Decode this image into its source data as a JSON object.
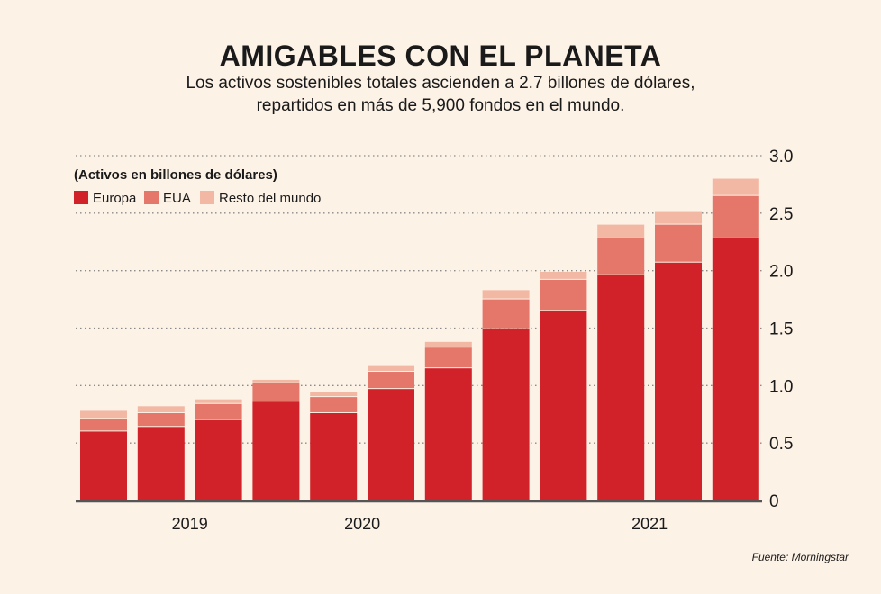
{
  "header": {
    "title": "AMIGABLES CON EL PLANETA",
    "subtitle_line1": "Los activos sostenibles totales ascienden a 2.7 billones de dólares,",
    "subtitle_line2": "repartidos en más de 5,900 fondos en el mundo."
  },
  "source": "Fuente: Morningstar",
  "colors": {
    "background": "#fdf2e6",
    "Europa": "#d12229",
    "EUA": "#e5776a",
    "Resto del mundo": "#f2b8a4",
    "grid": "#8a8a8a",
    "axis": "#555555"
  },
  "chart_data": {
    "type": "bar",
    "stacked": true,
    "unit_label": "(Activos en billones de dólares)",
    "ylim": [
      0,
      3.0
    ],
    "yticks": [
      "0",
      "0.5",
      "1.0",
      "1.5",
      "2.0",
      "2.5",
      "3.0"
    ],
    "grid": true,
    "legend_position": "top-left",
    "x_labels": [
      {
        "label": "2019",
        "bar_index": 1.5
      },
      {
        "label": "2020",
        "bar_index": 4.5
      },
      {
        "label": "2021",
        "bar_index": 9.5
      }
    ],
    "series": [
      {
        "name": "Europa",
        "values": [
          0.6,
          0.64,
          0.7,
          0.86,
          0.76,
          0.97,
          1.15,
          1.49,
          1.65,
          1.96,
          2.07,
          2.28
        ]
      },
      {
        "name": "EUA",
        "values": [
          0.11,
          0.12,
          0.14,
          0.16,
          0.14,
          0.15,
          0.18,
          0.26,
          0.27,
          0.32,
          0.33,
          0.37
        ]
      },
      {
        "name": "Resto del mundo",
        "values": [
          0.07,
          0.06,
          0.04,
          0.03,
          0.04,
          0.05,
          0.05,
          0.08,
          0.07,
          0.12,
          0.11,
          0.15
        ]
      }
    ]
  }
}
